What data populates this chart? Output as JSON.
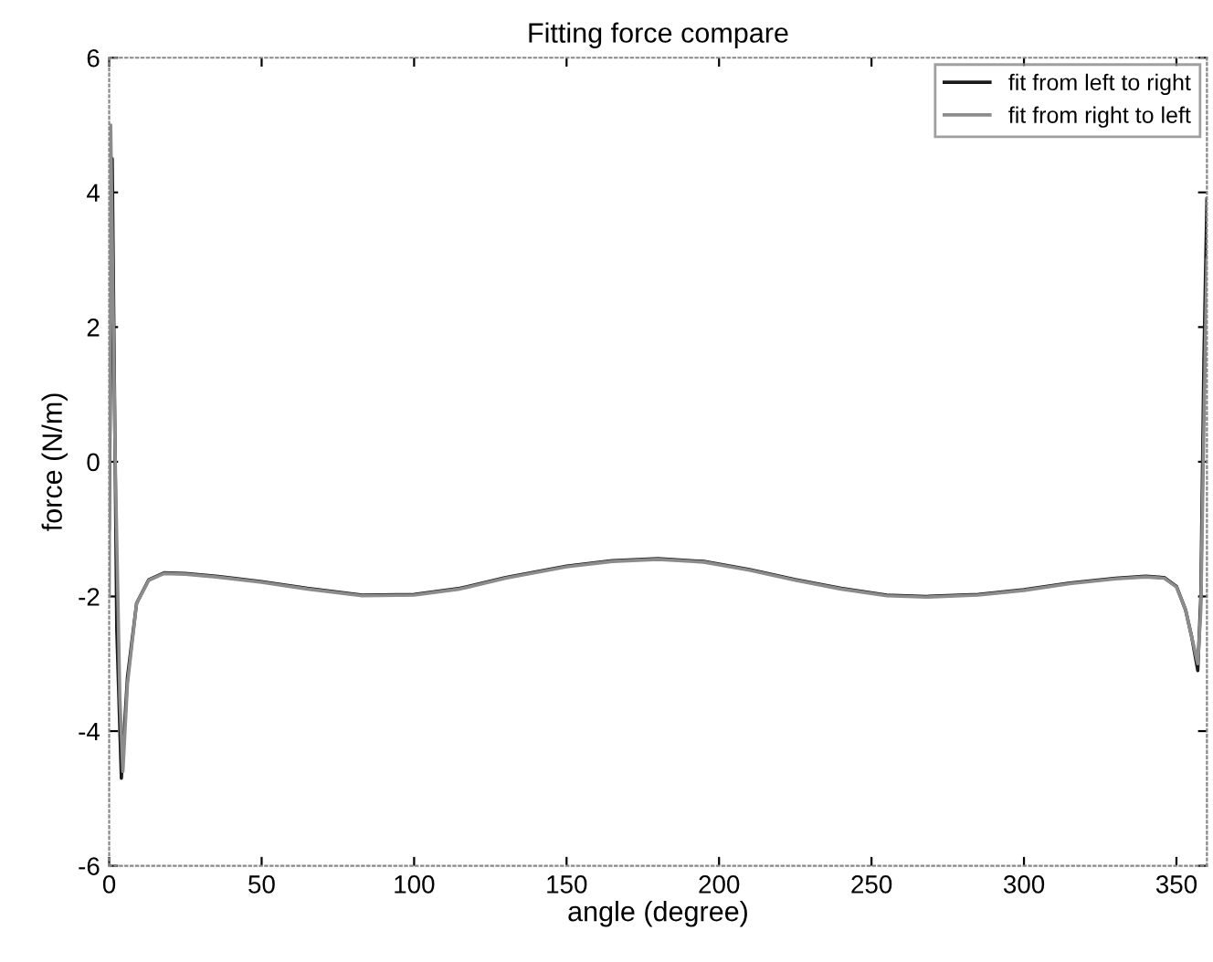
{
  "chart_data": {
    "type": "line",
    "title": "Fitting force compare",
    "xlabel": "angle (degree)",
    "ylabel": "force (N/m)",
    "xlim": [
      0,
      360
    ],
    "xticks": [
      0,
      50,
      100,
      150,
      200,
      250,
      300,
      350
    ],
    "ylim": [
      -6,
      6
    ],
    "yticks": [
      -6,
      -4,
      -2,
      0,
      2,
      4,
      6
    ],
    "grid": false,
    "legend": "top right",
    "line_style": "solid",
    "marker": "none",
    "series": [
      {
        "name": "fit from left to right",
        "color": "#1a1a1a",
        "x": [
          0,
          1,
          2.5,
          4,
          6,
          9,
          13,
          18,
          25,
          35,
          50,
          65,
          83,
          100,
          115,
          130,
          150,
          165,
          180,
          195,
          210,
          225,
          240,
          255,
          268,
          285,
          300,
          315,
          330,
          340,
          346,
          350,
          353,
          355,
          357,
          358,
          359,
          360
        ],
        "values": [
          -1.0,
          4.5,
          -2.5,
          -4.7,
          -3.2,
          -2.1,
          -1.75,
          -1.65,
          -1.66,
          -1.7,
          -1.78,
          -1.88,
          -1.98,
          -1.97,
          -1.88,
          -1.72,
          -1.55,
          -1.47,
          -1.44,
          -1.48,
          -1.6,
          -1.75,
          -1.88,
          -1.98,
          -2.0,
          -1.97,
          -1.9,
          -1.8,
          -1.73,
          -1.7,
          -1.72,
          -1.85,
          -2.2,
          -2.6,
          -3.1,
          -2.0,
          1.5,
          3.9
        ]
      },
      {
        "name": "fit from right to left",
        "color": "#8c8c8c",
        "x": [
          0,
          0.5,
          2,
          3.5,
          4.5,
          6,
          9,
          13,
          18,
          25,
          35,
          50,
          65,
          83,
          100,
          115,
          130,
          150,
          165,
          180,
          195,
          210,
          225,
          240,
          255,
          268,
          285,
          300,
          315,
          330,
          340,
          346,
          350,
          353,
          355,
          357,
          358,
          359,
          360
        ],
        "values": [
          -2.0,
          5.0,
          0.0,
          -3.5,
          -4.6,
          -3.3,
          -2.1,
          -1.76,
          -1.66,
          -1.67,
          -1.71,
          -1.79,
          -1.89,
          -1.99,
          -1.98,
          -1.89,
          -1.73,
          -1.56,
          -1.48,
          -1.45,
          -1.49,
          -1.61,
          -1.76,
          -1.89,
          -1.99,
          -2.01,
          -1.98,
          -1.91,
          -1.81,
          -1.74,
          -1.71,
          -1.73,
          -1.86,
          -2.2,
          -2.6,
          -3.0,
          -2.2,
          0.5,
          3.0
        ]
      }
    ]
  }
}
